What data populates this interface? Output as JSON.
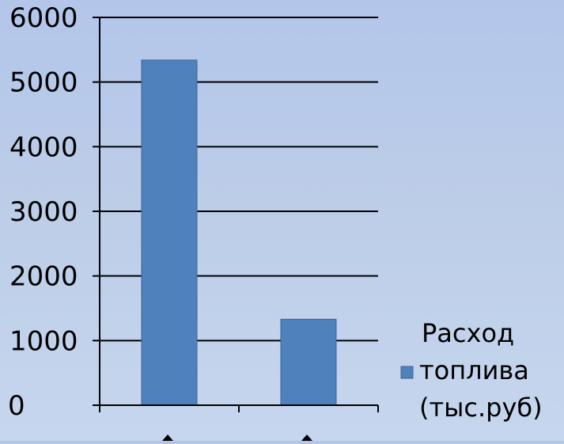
{
  "chart_data": {
    "type": "bar",
    "categories": [
      "",
      ""
    ],
    "series": [
      {
        "name": "Расход топлива (тыс.руб)",
        "name_lines": [
          "Расход",
          "топлива",
          "(тыс.руб)"
        ],
        "color": "#4f81bd",
        "values": [
          5340,
          1330
        ]
      }
    ],
    "title": "",
    "xlabel": "",
    "ylabel": "",
    "ylim": [
      0,
      6000
    ],
    "yticks": [
      0,
      1000,
      2000,
      3000,
      4000,
      5000,
      6000
    ],
    "grid": true,
    "legend": "right"
  },
  "colors": {
    "background": "#b3c6ea",
    "bar": "#4f81bd",
    "bar_edge": "#3c6594",
    "axis": "#000000"
  }
}
